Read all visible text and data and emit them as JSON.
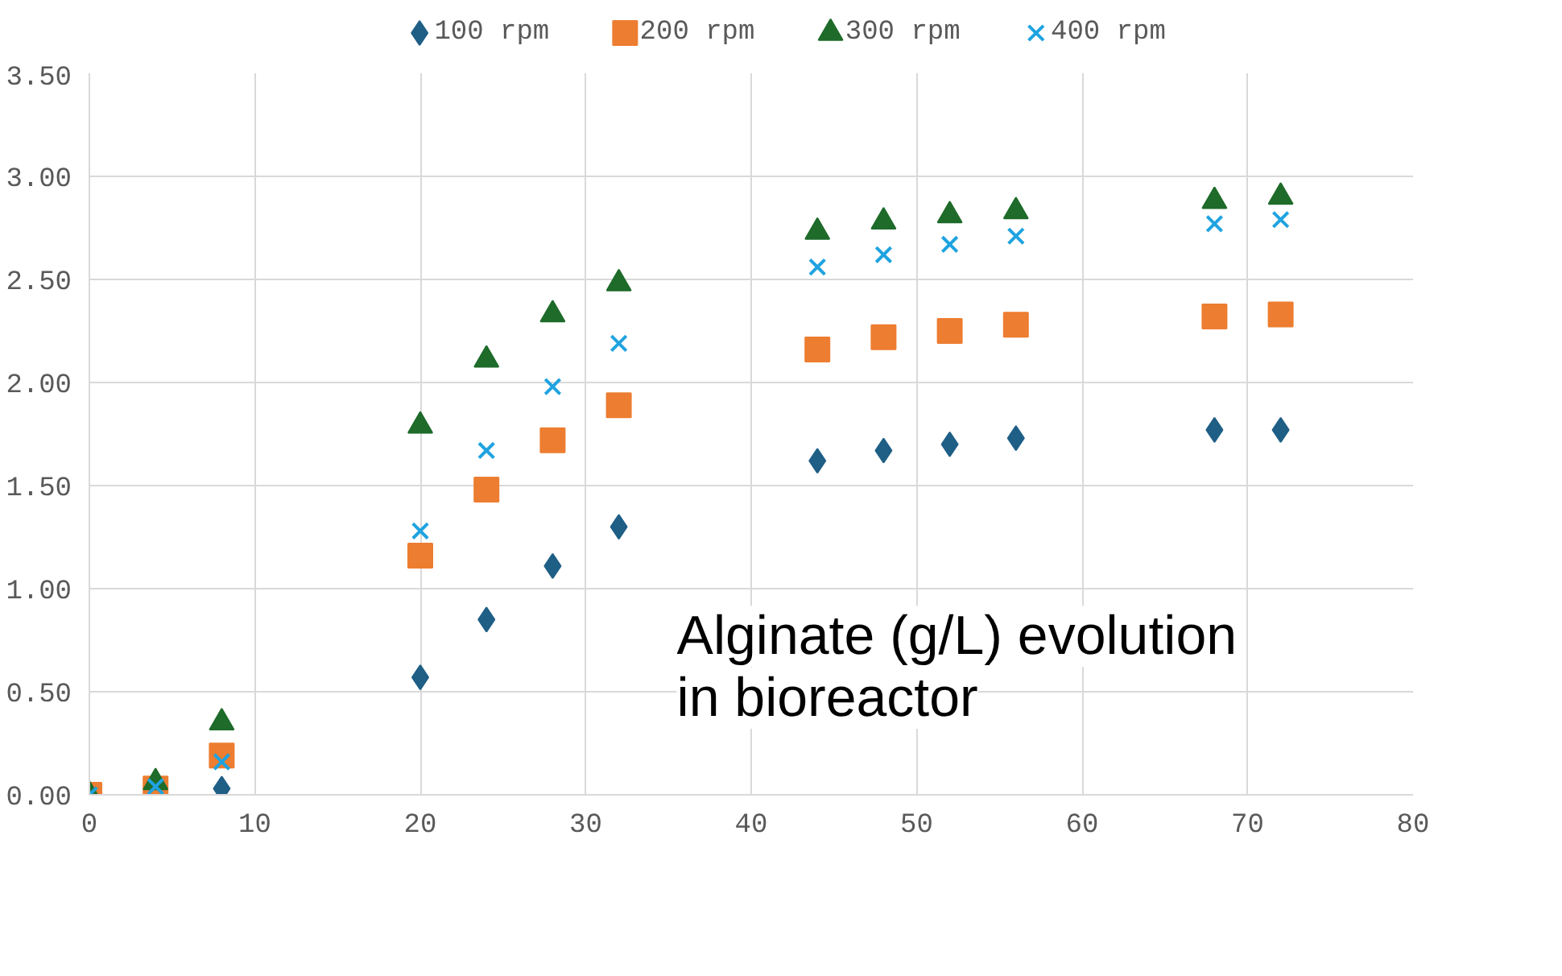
{
  "chart_data": {
    "type": "scatter",
    "x": [
      0,
      4,
      8,
      20,
      24,
      28,
      32,
      44,
      48,
      52,
      56,
      68,
      72
    ],
    "series": [
      {
        "name": "100 rpm",
        "color": "#1f5f86",
        "marker": "diamond",
        "values": [
          null,
          null,
          0.03,
          0.57,
          0.85,
          1.11,
          1.3,
          1.62,
          1.67,
          1.7,
          1.73,
          1.77,
          1.77
        ]
      },
      {
        "name": "200 rpm",
        "color": "#ed7d31",
        "marker": "square",
        "values": [
          0.0,
          0.03,
          0.19,
          1.16,
          1.48,
          1.72,
          1.89,
          2.16,
          2.22,
          2.25,
          2.28,
          2.32,
          2.33
        ]
      },
      {
        "name": "300 rpm",
        "color": "#1e6b2a",
        "marker": "triangle",
        "values": [
          0.0,
          0.06,
          0.35,
          1.79,
          2.11,
          2.33,
          2.48,
          2.73,
          2.78,
          2.81,
          2.83,
          2.88,
          2.9
        ]
      },
      {
        "name": "400 rpm",
        "color": "#1fa3e0",
        "marker": "cross",
        "values": [
          0.0,
          0.04,
          0.16,
          1.28,
          1.67,
          1.98,
          2.19,
          2.56,
          2.62,
          2.67,
          2.71,
          2.77,
          2.79
        ]
      }
    ],
    "xlim": [
      0,
      80
    ],
    "xticks": [
      0,
      10,
      20,
      30,
      40,
      50,
      60,
      70,
      80
    ],
    "ylim": [
      0,
      3.5
    ],
    "yticks": [
      {
        "value": 0,
        "label": "0.00"
      },
      {
        "value": 0.5,
        "label": "0.50"
      },
      {
        "value": 1,
        "label": "1.00"
      },
      {
        "value": 1.5,
        "label": "1.50"
      },
      {
        "value": 2,
        "label": "2.00"
      },
      {
        "value": 2.5,
        "label": "2.50"
      },
      {
        "value": 3,
        "label": "3.00"
      },
      {
        "value": 3.5,
        "label": "3.50"
      }
    ],
    "grid": true,
    "legend": "top",
    "annotations": [
      "Alginate (g/L) evolution\nin bioreactor"
    ]
  }
}
